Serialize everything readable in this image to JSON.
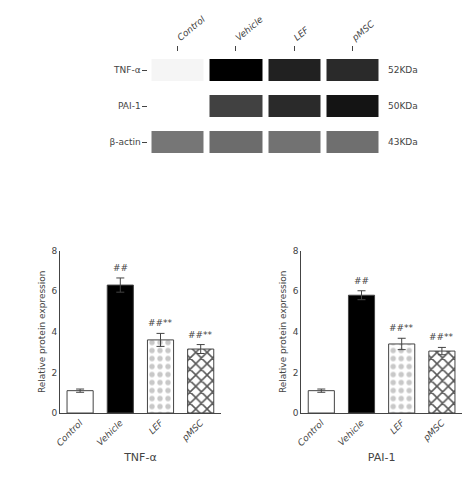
{
  "chart_data": [
    {
      "type": "heatmap",
      "x": [
        "Control",
        "Vehicle",
        "LEF",
        "pMSC"
      ],
      "y": [
        "TNF-α",
        "PAI-1",
        "β-actin"
      ],
      "cells": [
        [
          0.13,
          0.88,
          0.78,
          0.75
        ],
        [
          0.1,
          0.68,
          0.75,
          0.82
        ],
        [
          0.52,
          0.55,
          0.53,
          0.54
        ]
      ],
      "annotations": [
        {
          "y": "TNF-α",
          "text": "52KDa"
        },
        {
          "y": "PAI-1",
          "text": "50KDa"
        },
        {
          "y": "β-actin",
          "text": "43KDa"
        }
      ]
    },
    {
      "type": "bar",
      "categories": [
        "Control",
        "Vehicle",
        "LEF",
        "pMSC"
      ],
      "values": [
        1.1,
        6.3,
        3.6,
        3.15
      ],
      "errors": [
        0.08,
        0.35,
        0.32,
        0.22
      ],
      "colors": [
        "white",
        "black",
        "#c8c8c8",
        "#585858"
      ],
      "xlabel": "TNF-α",
      "ylabel": "Relative protein expression",
      "ylim": [
        0,
        8
      ],
      "yticks": [
        0,
        2,
        4,
        6,
        8
      ],
      "grid": false,
      "annotations": [
        {
          "x": "Vehicle",
          "text": "##"
        },
        {
          "x": "LEF",
          "text": "##**"
        },
        {
          "x": "pMSC",
          "text": "##**"
        }
      ]
    },
    {
      "type": "bar",
      "categories": [
        "Control",
        "Vehicle",
        "LEF",
        "pMSC"
      ],
      "values": [
        1.1,
        5.8,
        3.4,
        3.05
      ],
      "errors": [
        0.08,
        0.22,
        0.28,
        0.18
      ],
      "colors": [
        "white",
        "black",
        "#c8c8c8",
        "#585858"
      ],
      "xlabel": "PAI-1",
      "ylabel": "Relative protein expression",
      "ylim": [
        0,
        8
      ],
      "yticks": [
        0,
        2,
        4,
        6,
        8
      ],
      "grid": false,
      "annotations": [
        {
          "x": "Vehicle",
          "text": "##"
        },
        {
          "x": "LEF",
          "text": "##**"
        },
        {
          "x": "pMSC",
          "text": "##**"
        }
      ]
    }
  ]
}
